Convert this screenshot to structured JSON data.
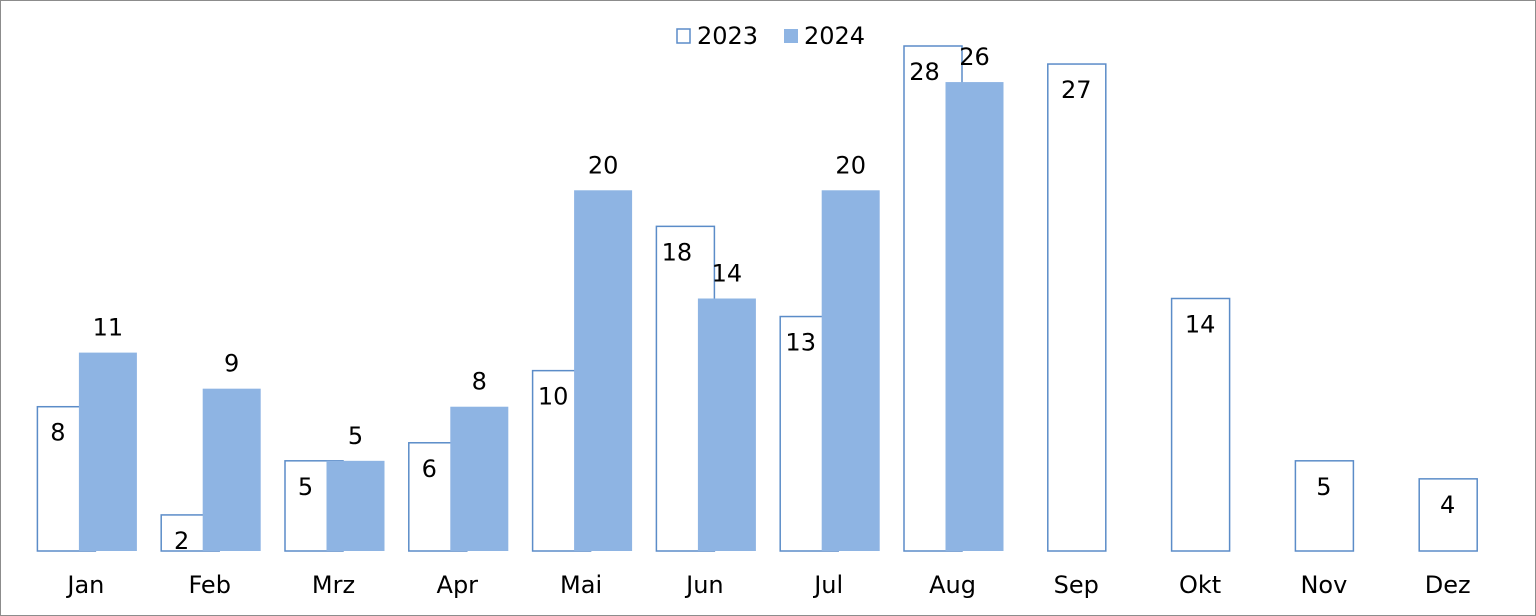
{
  "chart_data": {
    "type": "bar",
    "categories": [
      "Jan",
      "Feb",
      "Mrz",
      "Apr",
      "Mai",
      "Jun",
      "Jul",
      "Aug",
      "Sep",
      "Okt",
      "Nov",
      "Dez"
    ],
    "series": [
      {
        "name": "2023",
        "color": "#5b8cc8",
        "values": [
          8,
          2,
          5,
          6,
          10,
          18,
          13,
          28,
          27,
          14,
          5,
          4
        ]
      },
      {
        "name": "2024",
        "color": "#8eb4e3",
        "values": [
          11,
          9,
          5,
          8,
          20,
          14,
          20,
          26,
          null,
          null,
          null,
          null
        ]
      }
    ],
    "ylim": [
      0,
      28
    ],
    "legend": "top"
  }
}
